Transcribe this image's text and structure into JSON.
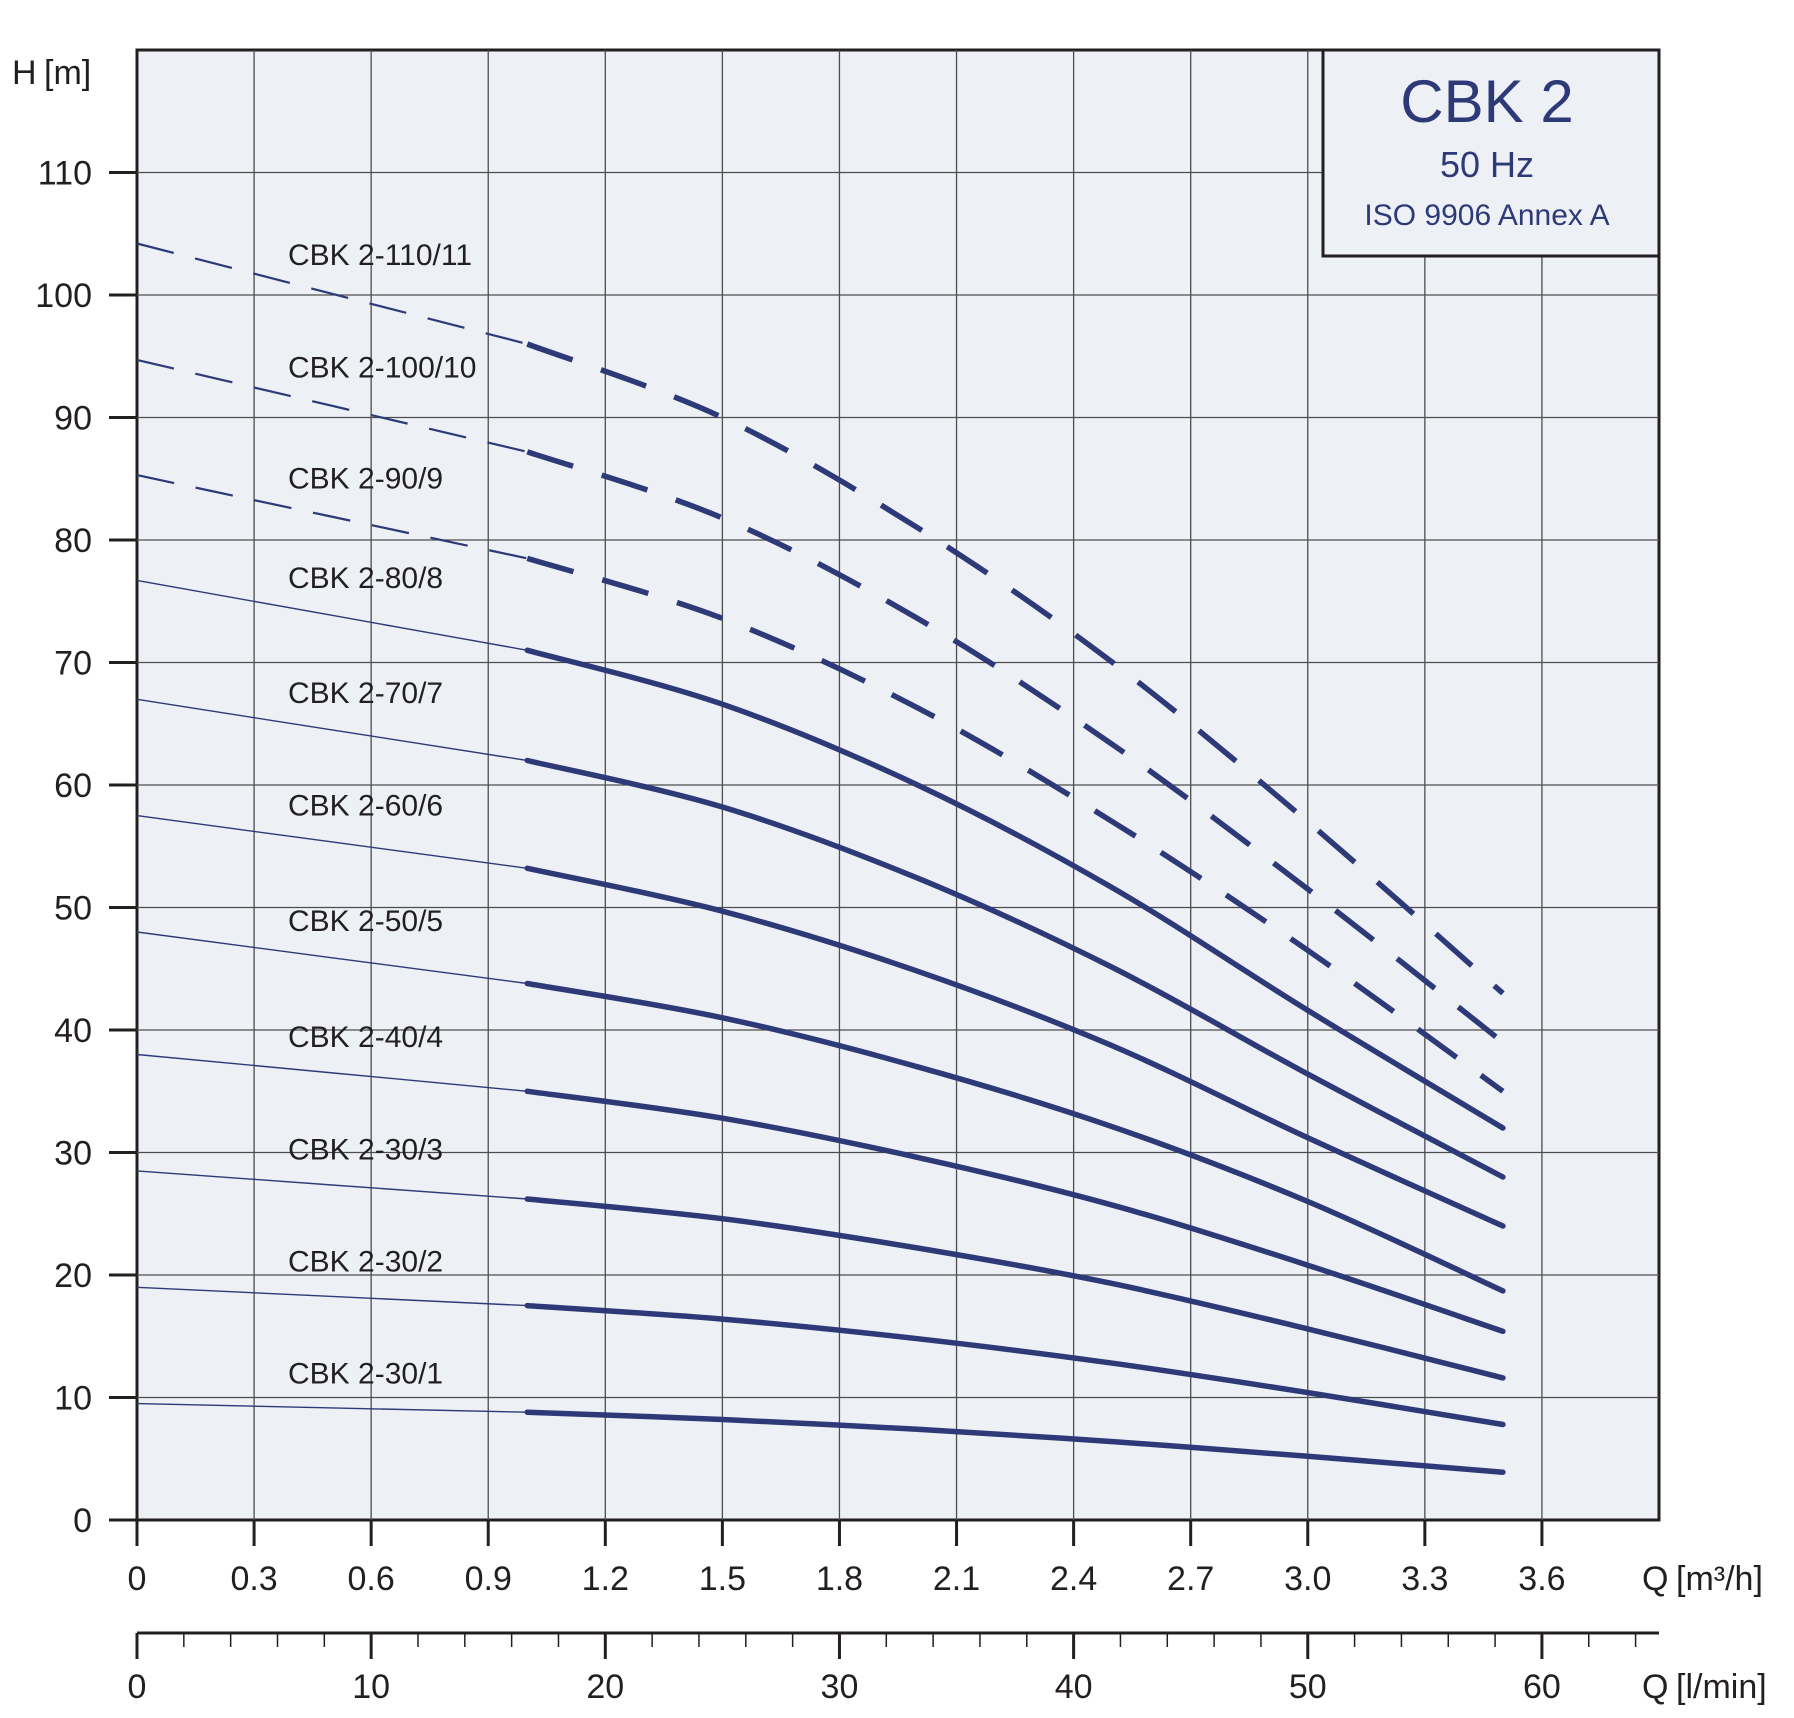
{
  "chart_data": {
    "type": "line",
    "title": "CBK 2",
    "subtitle": "50 Hz",
    "note": "ISO 9906 Annex A",
    "ylabel": {
      "symbol": "H",
      "unit": "[m]"
    },
    "xlabel": {
      "symbol": "Q",
      "unit": "[m³/h]"
    },
    "x2label": {
      "symbol": "Q",
      "unit": "[l/min]"
    },
    "xlim": [
      0,
      3.9
    ],
    "ylim": [
      0,
      120
    ],
    "x_ticks": [
      "0",
      "0.3",
      "0.6",
      "0.9",
      "1.2",
      "1.5",
      "1.8",
      "2.1",
      "2.4",
      "2.7",
      "3.0",
      "3.3",
      "3.6"
    ],
    "x_tick_values": [
      0,
      0.3,
      0.6,
      0.9,
      1.2,
      1.5,
      1.8,
      2.1,
      2.4,
      2.7,
      3.0,
      3.3,
      3.6
    ],
    "x2_ticks": [
      "0",
      "10",
      "20",
      "30",
      "40",
      "50",
      "60"
    ],
    "x2_tick_values": [
      0,
      10,
      20,
      30,
      40,
      50,
      60
    ],
    "y_ticks": [
      "0",
      "10",
      "20",
      "30",
      "40",
      "50",
      "60",
      "70",
      "80",
      "90",
      "100",
      "110"
    ],
    "y_tick_values": [
      0,
      10,
      20,
      30,
      40,
      50,
      60,
      70,
      80,
      90,
      100,
      110
    ],
    "grid": true,
    "operating_range_start": 1.0,
    "series": [
      {
        "name": "CBK 2-30/1",
        "dashed": false,
        "x": [
          0,
          1.0,
          1.5,
          2.0,
          2.5,
          3.0,
          3.5
        ],
        "y": [
          9.5,
          8.8,
          8.2,
          7.4,
          6.4,
          5.2,
          3.9
        ]
      },
      {
        "name": "CBK 2-30/2",
        "dashed": false,
        "x": [
          0,
          1.0,
          1.5,
          2.0,
          2.5,
          3.0,
          3.5
        ],
        "y": [
          19.0,
          17.5,
          16.4,
          14.8,
          12.8,
          10.4,
          7.8
        ]
      },
      {
        "name": "CBK 2-30/3",
        "dashed": false,
        "x": [
          0,
          1.0,
          1.5,
          2.0,
          2.5,
          3.0,
          3.5
        ],
        "y": [
          28.5,
          26.2,
          24.6,
          22.2,
          19.3,
          15.6,
          11.6
        ]
      },
      {
        "name": "CBK 2-40/4",
        "dashed": false,
        "x": [
          0,
          1.0,
          1.5,
          2.0,
          2.5,
          3.0,
          3.5
        ],
        "y": [
          38.0,
          35.0,
          32.8,
          29.6,
          25.7,
          20.8,
          15.4
        ]
      },
      {
        "name": "CBK 2-50/5",
        "dashed": false,
        "x": [
          0,
          1.0,
          1.5,
          2.0,
          2.5,
          3.0,
          3.5
        ],
        "y": [
          48.0,
          43.8,
          41.0,
          37.0,
          32.1,
          26.0,
          18.7
        ]
      },
      {
        "name": "CBK 2-60/6",
        "dashed": false,
        "x": [
          0,
          1.0,
          1.5,
          2.0,
          2.5,
          3.0,
          3.5
        ],
        "y": [
          57.5,
          53.2,
          49.7,
          44.8,
          38.7,
          31.2,
          24.0
        ]
      },
      {
        "name": "CBK 2-70/7",
        "dashed": false,
        "x": [
          0,
          1.0,
          1.5,
          2.0,
          2.5,
          3.0,
          3.5
        ],
        "y": [
          67.0,
          62.0,
          58.2,
          52.4,
          45.1,
          36.4,
          28.0
        ]
      },
      {
        "name": "CBK 2-80/8",
        "dashed": false,
        "x": [
          0,
          1.0,
          1.5,
          2.0,
          2.5,
          3.0,
          3.5
        ],
        "y": [
          76.7,
          71.0,
          66.6,
          60.0,
          51.6,
          41.6,
          32.0
        ]
      },
      {
        "name": "CBK 2-90/9",
        "dashed": true,
        "x": [
          0,
          1.0,
          1.5,
          2.0,
          2.5,
          3.0,
          3.5
        ],
        "y": [
          85.3,
          78.5,
          73.6,
          66.3,
          57.0,
          46.5,
          35.0
        ]
      },
      {
        "name": "CBK 2-100/10",
        "dashed": true,
        "x": [
          0,
          1.0,
          1.5,
          2.0,
          2.5,
          3.0,
          3.5
        ],
        "y": [
          94.7,
          87.2,
          81.8,
          73.6,
          63.3,
          51.5,
          39.0
        ]
      },
      {
        "name": "CBK 2-110/11",
        "dashed": true,
        "x": [
          0,
          1.0,
          1.5,
          2.0,
          2.5,
          3.0,
          3.5
        ],
        "y": [
          104.2,
          96.0,
          90.0,
          81.0,
          70.0,
          57.0,
          43.0
        ]
      }
    ]
  },
  "colors": {
    "curve": "#2e3a78",
    "title": "#2e3a78",
    "plot_bg": "#edf0f5",
    "grid": "#4d4d4d",
    "axis": "#231f20"
  }
}
